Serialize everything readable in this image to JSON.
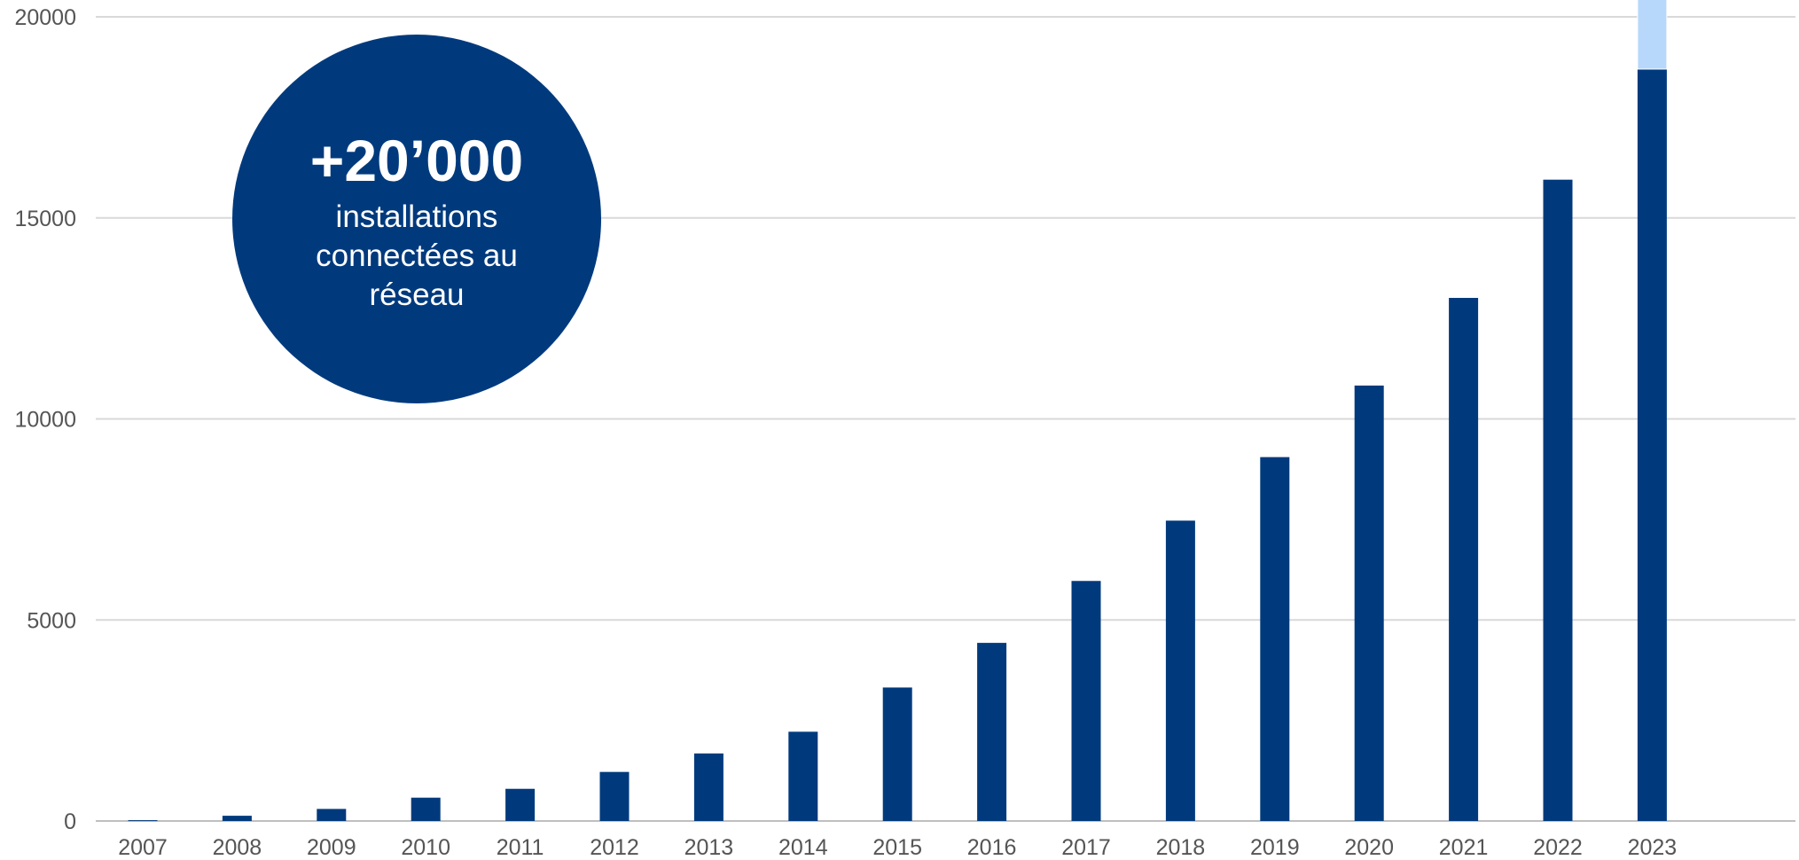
{
  "chart_data": {
    "type": "bar",
    "categories": [
      "2007",
      "2008",
      "2009",
      "2010",
      "2011",
      "2012",
      "2013",
      "2014",
      "2015",
      "2016",
      "2017",
      "2018",
      "2019",
      "2020",
      "2021",
      "2022",
      "2023"
    ],
    "series": [
      {
        "values": [
          20,
          130,
          300,
          580,
          800,
          1220,
          1680,
          2220,
          3320,
          4430,
          5970,
          7470,
          9050,
          10830,
          13010,
          15950,
          18700
        ]
      },
      {
        "values": [
          0,
          0,
          0,
          0,
          0,
          0,
          0,
          0,
          0,
          0,
          0,
          0,
          0,
          0,
          0,
          0,
          1750
        ]
      }
    ],
    "yticks": [
      "0",
      "5000",
      "10000",
      "15000",
      "20000"
    ],
    "ylim": [
      0,
      20000
    ],
    "grid": true,
    "colors": [
      "#003a7d",
      "#b8d8fb"
    ]
  },
  "callout": {
    "value": "+20’000",
    "text": "installations connectées au réseau"
  }
}
